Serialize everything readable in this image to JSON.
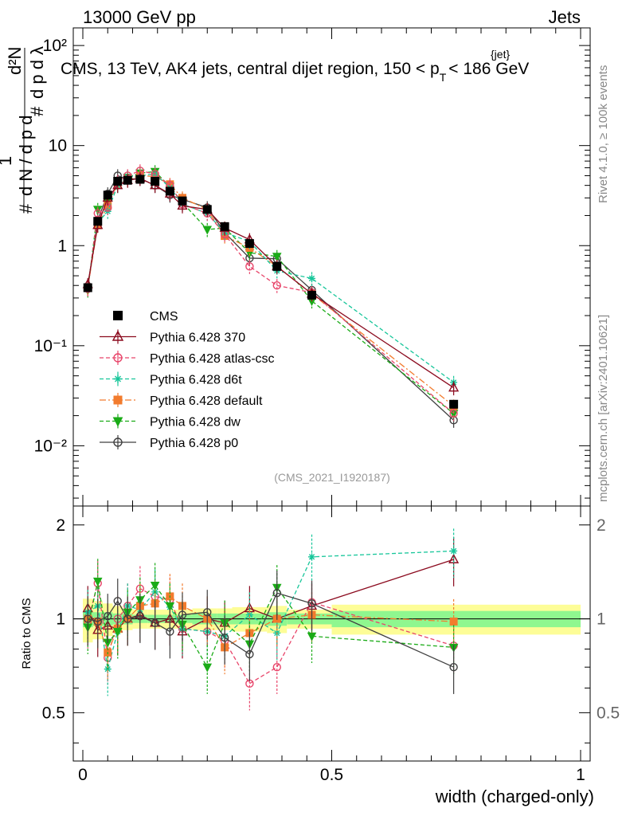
{
  "header": {
    "left_title": "13000 GeV pp",
    "right_title": "Jets",
    "plot_title": "CMS, 13 TeV, AK4 jets, central dijet region, 150 < p",
    "plot_title_sup": "{jet}",
    "plot_title_sub": "T",
    "plot_title_end": "< 186 GeV",
    "ylabel_main": "1/N dN/dp_T dλ (d²N / dp_T dλ)",
    "side_rivet": "Rivet 4.1.0, ≥ 100k events",
    "side_mcplots": "mcplots.cern.ch [arXiv:2401.10621]",
    "analysis_id": "(CMS_2021_I1920187)"
  },
  "colors": {
    "CMS": "#000000",
    "370": "#8b0a1e",
    "atlas-csc": "#e8456a",
    "d6t": "#17c69a",
    "default": "#f27b2d",
    "dw": "#1aab17",
    "p0": "#404040",
    "band_stat": "#8ff78f",
    "band_tot": "#fdfd97"
  },
  "chart_data": [
    {
      "type": "scatter",
      "panel": "main",
      "ylabel": "# 1/(dN/dp_T) d²N/(dp_T dλ)",
      "yscale": "log",
      "ylim": [
        0.0025,
        150
      ],
      "xlim": [
        -0.01,
        1.0
      ],
      "ytick_labels": [
        "10⁻²",
        "10⁻¹",
        "1",
        "10",
        "10²"
      ],
      "x": [
        0.01,
        0.03,
        0.05,
        0.07,
        0.09,
        0.115,
        0.145,
        0.175,
        0.2,
        0.25,
        0.285,
        0.335,
        0.39,
        0.46,
        0.745
      ],
      "series": [
        {
          "name": "CMS",
          "values": [
            0.38,
            1.75,
            3.2,
            4.4,
            4.5,
            4.6,
            4.4,
            3.5,
            2.8,
            2.3,
            1.55,
            1.05,
            0.62,
            0.32,
            0.026
          ]
        },
        {
          "name": "Pythia 6.428 370",
          "values": [
            0.41,
            1.6,
            3.0,
            4.0,
            4.5,
            4.7,
            4.0,
            3.3,
            2.5,
            2.3,
            1.5,
            1.15,
            0.62,
            0.33,
            0.038
          ]
        },
        {
          "name": "Pythia 6.428 atlas-csc",
          "values": [
            0.37,
            2.1,
            2.4,
            4.4,
            5.0,
            5.6,
            5.2,
            4.0,
            2.6,
            2.1,
            1.3,
            0.62,
            0.4,
            0.34,
            0.021
          ]
        },
        {
          "name": "Pythia 6.428 d6t",
          "values": [
            0.4,
            1.7,
            2.2,
            4.0,
            4.9,
            5.0,
            5.2,
            3.8,
            2.6,
            2.1,
            1.35,
            1.1,
            0.56,
            0.47,
            0.043
          ]
        },
        {
          "name": "Pythia 6.428 default",
          "values": [
            0.38,
            1.6,
            2.5,
            4.1,
            4.6,
            5.0,
            4.9,
            4.1,
            3.0,
            2.3,
            1.25,
            0.95,
            0.62,
            0.33,
            0.025
          ]
        },
        {
          "name": "Pythia 6.428 dw",
          "values": [
            0.36,
            2.3,
            2.7,
            4.0,
            4.8,
            5.3,
            5.5,
            3.9,
            2.7,
            1.45,
            1.5,
            0.85,
            0.78,
            0.28,
            0.021
          ]
        },
        {
          "name": "Pythia 6.428 p0",
          "values": [
            0.38,
            1.8,
            3.3,
            5.0,
            4.6,
            4.7,
            4.0,
            3.2,
            2.9,
            2.4,
            1.35,
            0.75,
            0.74,
            0.36,
            0.018
          ]
        }
      ],
      "legend": [
        "CMS",
        "Pythia 6.428 370",
        "Pythia 6.428 atlas-csc",
        "Pythia 6.428 d6t",
        "Pythia 6.428 default",
        "Pythia 6.428 dw",
        "Pythia 6.428 p0"
      ]
    },
    {
      "type": "line",
      "panel": "ratio",
      "ylabel": "Ratio to CMS",
      "xlabel": "width (charged-only)",
      "ylim": [
        0.35,
        2.3
      ],
      "xlim": [
        -0.01,
        1.0
      ],
      "ytick_labels": [
        "0.5",
        "1",
        "2"
      ],
      "xtick_labels": [
        "0",
        "0.5",
        "1"
      ],
      "x": [
        0.01,
        0.03,
        0.05,
        0.07,
        0.09,
        0.115,
        0.145,
        0.175,
        0.2,
        0.25,
        0.285,
        0.335,
        0.39,
        0.46,
        0.745
      ],
      "bin_edges": [
        0,
        0.02,
        0.04,
        0.06,
        0.08,
        0.1,
        0.13,
        0.16,
        0.19,
        0.22,
        0.27,
        0.3,
        0.37,
        0.41,
        0.5,
        1.0
      ],
      "band_stat_halfwidth": [
        0.06,
        0.05,
        0.05,
        0.04,
        0.04,
        0.03,
        0.03,
        0.03,
        0.03,
        0.04,
        0.04,
        0.04,
        0.05,
        0.04,
        0.06
      ],
      "band_tot_halfwidth": [
        0.16,
        0.14,
        0.12,
        0.1,
        0.08,
        0.07,
        0.07,
        0.07,
        0.07,
        0.08,
        0.08,
        0.09,
        0.1,
        0.07,
        0.11
      ],
      "series": [
        {
          "name": "Pythia 6.428 370",
          "values": [
            1.08,
            0.92,
            0.95,
            0.93,
            1.0,
            1.03,
            0.97,
            1.0,
            0.91,
            1.0,
            0.97,
            1.08,
            1.0,
            1.1,
            1.55
          ]
        },
        {
          "name": "Pythia 6.428 atlas-csc",
          "values": [
            0.98,
            1.3,
            0.75,
            1.0,
            1.1,
            1.25,
            1.18,
            1.15,
            0.93,
            0.91,
            0.85,
            0.62,
            0.7,
            1.13,
            0.82
          ]
        },
        {
          "name": "Pythia 6.428 d6t",
          "values": [
            1.05,
            1.1,
            0.69,
            0.91,
            1.1,
            1.07,
            1.22,
            1.09,
            0.93,
            0.91,
            0.88,
            1.03,
            0.9,
            1.58,
            1.65
          ]
        },
        {
          "name": "Pythia 6.428 default",
          "values": [
            1.0,
            0.98,
            0.78,
            0.93,
            1.0,
            1.1,
            1.12,
            1.18,
            1.1,
            1.0,
            0.81,
            0.9,
            1.0,
            1.03,
            0.98
          ]
        },
        {
          "name": "Pythia 6.428 dw",
          "values": [
            0.94,
            1.32,
            0.84,
            0.91,
            1.05,
            1.15,
            1.28,
            1.1,
            0.96,
            0.7,
            0.97,
            0.83,
            1.26,
            0.88,
            0.81
          ]
        },
        {
          "name": "Pythia 6.428 p0",
          "values": [
            1.0,
            0.98,
            1.02,
            1.14,
            1.0,
            1.02,
            0.97,
            0.91,
            1.03,
            1.05,
            0.87,
            0.77,
            1.21,
            1.12,
            0.7
          ]
        }
      ]
    }
  ]
}
